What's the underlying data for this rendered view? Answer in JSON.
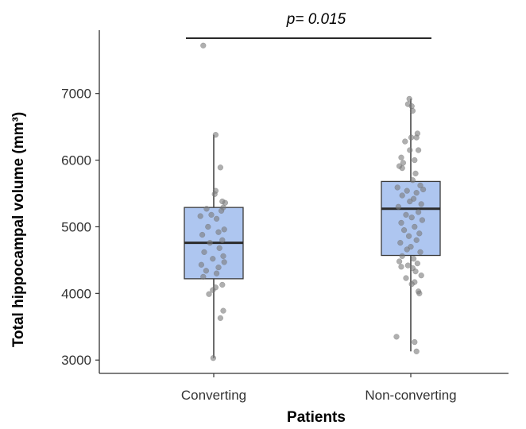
{
  "chart_data": {
    "type": "box",
    "title": "",
    "xlabel": "Patients",
    "ylabel": "Total hippocampal volume (mm³)",
    "ylim": [
      2800,
      7950
    ],
    "yticks": [
      3000,
      4000,
      5000,
      6000,
      7000
    ],
    "grid": false,
    "legend": "none",
    "categories": [
      "Converting",
      "Non-converting"
    ],
    "annotation": {
      "text": "p= 0.015",
      "y": 7830
    },
    "colors": {
      "box_fill": "#aec6f0",
      "box_stroke": "#3a3a3a",
      "point": "#7a7a7a",
      "axis": "#333333"
    },
    "boxes": [
      {
        "category": "Converting",
        "min": 3030,
        "q1": 4220,
        "median": 4760,
        "q3": 5290,
        "max": 6380
      },
      {
        "category": "Non-converting",
        "min": 3130,
        "q1": 4570,
        "median": 5270,
        "q3": 5680,
        "max": 6920
      }
    ],
    "points": [
      {
        "category": "Converting",
        "jitter": -0.22,
        "y": 7720
      },
      {
        "category": "Converting",
        "jitter": 0.04,
        "y": 6380
      },
      {
        "category": "Converting",
        "jitter": 0.14,
        "y": 5890
      },
      {
        "category": "Converting",
        "jitter": 0.04,
        "y": 5540
      },
      {
        "category": "Converting",
        "jitter": 0.02,
        "y": 5490
      },
      {
        "category": "Converting",
        "jitter": 0.18,
        "y": 5380
      },
      {
        "category": "Converting",
        "jitter": 0.24,
        "y": 5360
      },
      {
        "category": "Converting",
        "jitter": 0.2,
        "y": 5290
      },
      {
        "category": "Converting",
        "jitter": -0.15,
        "y": 5270
      },
      {
        "category": "Converting",
        "jitter": -0.05,
        "y": 5180
      },
      {
        "category": "Converting",
        "jitter": 0.16,
        "y": 5240
      },
      {
        "category": "Converting",
        "jitter": -0.28,
        "y": 5160
      },
      {
        "category": "Converting",
        "jitter": 0.06,
        "y": 5120
      },
      {
        "category": "Converting",
        "jitter": -0.12,
        "y": 5000
      },
      {
        "category": "Converting",
        "jitter": 0.22,
        "y": 4960
      },
      {
        "category": "Converting",
        "jitter": 0.1,
        "y": 4920
      },
      {
        "category": "Converting",
        "jitter": -0.24,
        "y": 4880
      },
      {
        "category": "Converting",
        "jitter": 0.18,
        "y": 4800
      },
      {
        "category": "Converting",
        "jitter": -0.08,
        "y": 4760
      },
      {
        "category": "Converting",
        "jitter": 0.12,
        "y": 4680
      },
      {
        "category": "Converting",
        "jitter": -0.2,
        "y": 4620
      },
      {
        "category": "Converting",
        "jitter": 0.2,
        "y": 4560
      },
      {
        "category": "Converting",
        "jitter": -0.02,
        "y": 4520
      },
      {
        "category": "Converting",
        "jitter": 0.22,
        "y": 4470
      },
      {
        "category": "Converting",
        "jitter": -0.26,
        "y": 4430
      },
      {
        "category": "Converting",
        "jitter": 0.1,
        "y": 4390
      },
      {
        "category": "Converting",
        "jitter": -0.16,
        "y": 4340
      },
      {
        "category": "Converting",
        "jitter": 0.06,
        "y": 4300
      },
      {
        "category": "Converting",
        "jitter": -0.22,
        "y": 4250
      },
      {
        "category": "Converting",
        "jitter": 0.18,
        "y": 4130
      },
      {
        "category": "Converting",
        "jitter": 0.04,
        "y": 4090
      },
      {
        "category": "Converting",
        "jitter": -0.02,
        "y": 4050
      },
      {
        "category": "Converting",
        "jitter": -0.1,
        "y": 3990
      },
      {
        "category": "Converting",
        "jitter": 0.2,
        "y": 3740
      },
      {
        "category": "Converting",
        "jitter": 0.14,
        "y": 3630
      },
      {
        "category": "Converting",
        "jitter": -0.01,
        "y": 3030
      },
      {
        "category": "Non-converting",
        "jitter": -0.03,
        "y": 6920
      },
      {
        "category": "Non-converting",
        "jitter": -0.06,
        "y": 6840
      },
      {
        "category": "Non-converting",
        "jitter": 0.02,
        "y": 6810
      },
      {
        "category": "Non-converting",
        "jitter": 0.04,
        "y": 6740
      },
      {
        "category": "Non-converting",
        "jitter": 0.14,
        "y": 6400
      },
      {
        "category": "Non-converting",
        "jitter": 0.12,
        "y": 6340
      },
      {
        "category": "Non-converting",
        "jitter": 0.01,
        "y": 6340
      },
      {
        "category": "Non-converting",
        "jitter": -0.12,
        "y": 6280
      },
      {
        "category": "Non-converting",
        "jitter": -0.02,
        "y": 6150
      },
      {
        "category": "Non-converting",
        "jitter": 0.16,
        "y": 6150
      },
      {
        "category": "Non-converting",
        "jitter": -0.2,
        "y": 6040
      },
      {
        "category": "Non-converting",
        "jitter": 0.08,
        "y": 6000
      },
      {
        "category": "Non-converting",
        "jitter": -0.16,
        "y": 5960
      },
      {
        "category": "Non-converting",
        "jitter": -0.24,
        "y": 5910
      },
      {
        "category": "Non-converting",
        "jitter": -0.18,
        "y": 5880
      },
      {
        "category": "Non-converting",
        "jitter": 0.1,
        "y": 5800
      },
      {
        "category": "Non-converting",
        "jitter": 0.04,
        "y": 5700
      },
      {
        "category": "Non-converting",
        "jitter": 0.2,
        "y": 5620
      },
      {
        "category": "Non-converting",
        "jitter": -0.28,
        "y": 5590
      },
      {
        "category": "Non-converting",
        "jitter": 0.26,
        "y": 5560
      },
      {
        "category": "Non-converting",
        "jitter": -0.08,
        "y": 5540
      },
      {
        "category": "Non-converting",
        "jitter": 0.12,
        "y": 5510
      },
      {
        "category": "Non-converting",
        "jitter": -0.18,
        "y": 5470
      },
      {
        "category": "Non-converting",
        "jitter": 0.06,
        "y": 5420
      },
      {
        "category": "Non-converting",
        "jitter": -0.02,
        "y": 5380
      },
      {
        "category": "Non-converting",
        "jitter": 0.22,
        "y": 5340
      },
      {
        "category": "Non-converting",
        "jitter": -0.26,
        "y": 5300
      },
      {
        "category": "Non-converting",
        "jitter": 0.16,
        "y": 5220
      },
      {
        "category": "Non-converting",
        "jitter": -0.1,
        "y": 5180
      },
      {
        "category": "Non-converting",
        "jitter": 0.02,
        "y": 5140
      },
      {
        "category": "Non-converting",
        "jitter": 0.24,
        "y": 5100
      },
      {
        "category": "Non-converting",
        "jitter": -0.2,
        "y": 5060
      },
      {
        "category": "Non-converting",
        "jitter": 0.08,
        "y": 5000
      },
      {
        "category": "Non-converting",
        "jitter": -0.14,
        "y": 4950
      },
      {
        "category": "Non-converting",
        "jitter": 0.18,
        "y": 4900
      },
      {
        "category": "Non-converting",
        "jitter": -0.04,
        "y": 4860
      },
      {
        "category": "Non-converting",
        "jitter": 0.12,
        "y": 4800
      },
      {
        "category": "Non-converting",
        "jitter": -0.22,
        "y": 4760
      },
      {
        "category": "Non-converting",
        "jitter": 0.0,
        "y": 4700
      },
      {
        "category": "Non-converting",
        "jitter": -0.08,
        "y": 4660
      },
      {
        "category": "Non-converting",
        "jitter": 0.2,
        "y": 4620
      },
      {
        "category": "Non-converting",
        "jitter": -0.18,
        "y": 4560
      },
      {
        "category": "Non-converting",
        "jitter": 0.06,
        "y": 4520
      },
      {
        "category": "Non-converting",
        "jitter": -0.24,
        "y": 4480
      },
      {
        "category": "Non-converting",
        "jitter": 0.14,
        "y": 4450
      },
      {
        "category": "Non-converting",
        "jitter": -0.06,
        "y": 4420
      },
      {
        "category": "Non-converting",
        "jitter": -0.2,
        "y": 4400
      },
      {
        "category": "Non-converting",
        "jitter": 0.04,
        "y": 4380
      },
      {
        "category": "Non-converting",
        "jitter": 0.1,
        "y": 4330
      },
      {
        "category": "Non-converting",
        "jitter": 0.22,
        "y": 4270
      },
      {
        "category": "Non-converting",
        "jitter": -0.1,
        "y": 4230
      },
      {
        "category": "Non-converting",
        "jitter": 0.08,
        "y": 4170
      },
      {
        "category": "Non-converting",
        "jitter": 0.02,
        "y": 4140
      },
      {
        "category": "Non-converting",
        "jitter": 0.16,
        "y": 4030
      },
      {
        "category": "Non-converting",
        "jitter": 0.18,
        "y": 4000
      },
      {
        "category": "Non-converting",
        "jitter": -0.3,
        "y": 3350
      },
      {
        "category": "Non-converting",
        "jitter": 0.08,
        "y": 3270
      },
      {
        "category": "Non-converting",
        "jitter": 0.12,
        "y": 3130
      }
    ]
  }
}
